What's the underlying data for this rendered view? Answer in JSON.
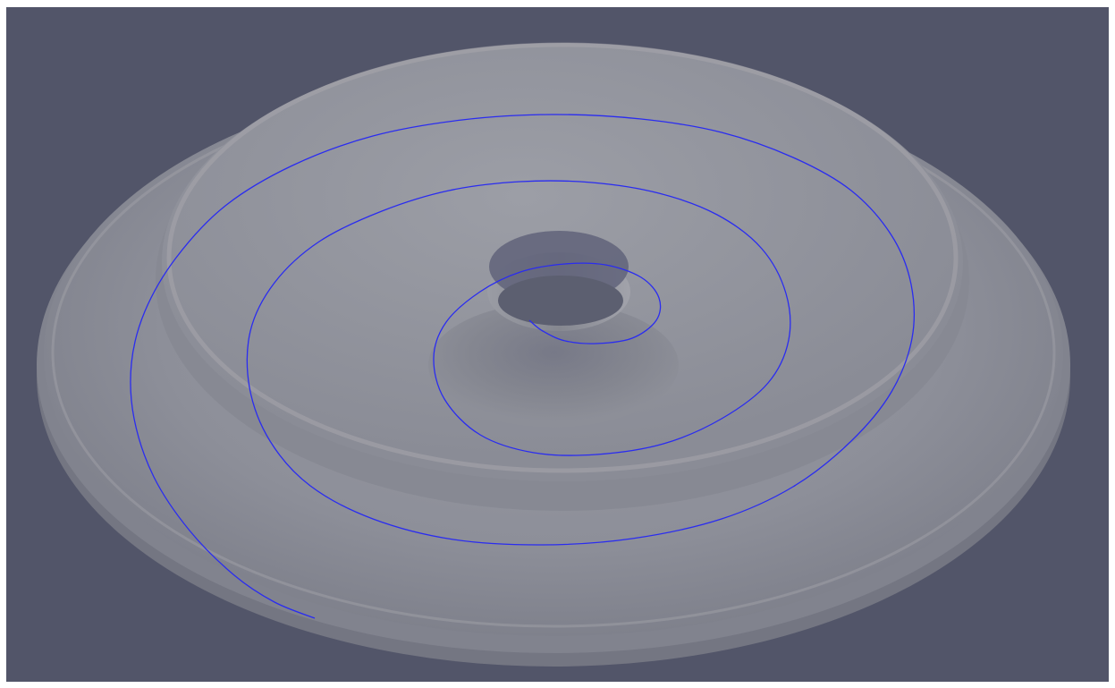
{
  "scene": {
    "background_color": "#525569",
    "border_color": "#ffffff",
    "surface_colors": {
      "outer_base": "#797b87",
      "outer_rim": "#8a8c96",
      "outer_top": "#9b9ca5",
      "raised_disc": "#8e9099",
      "raised_top": "#9a9ca4",
      "inner_bowl": "#7a7c87",
      "hole": "#5f6273",
      "hole_wall": "#8f919a"
    },
    "spiral_color": "#2a2cf0",
    "objects": [
      "outer-plate",
      "raised-disc",
      "center-hole",
      "spiral-curve"
    ]
  }
}
